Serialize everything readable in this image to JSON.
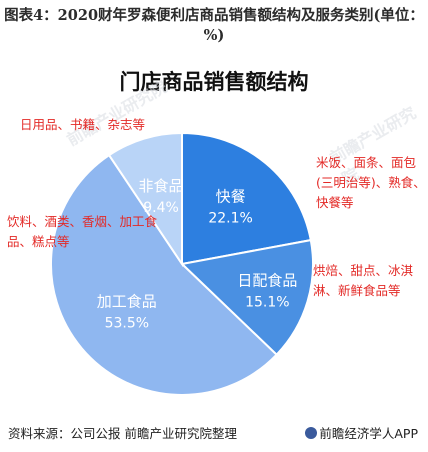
{
  "figure_title": "图表4：2020财年罗森便利店商品销售额结构及服务类别(单位：%)",
  "source": "资料来源：公司公报 前瞻产业研究院整理",
  "logo_text": "前瞻经济学人APP",
  "watermark": "前瞻产业研究院",
  "colors": {
    "slice_dark": "#2d7fe0",
    "slice_mid": "#4a90e2",
    "slice_light": "#8fb7f0",
    "slice_pale": "#b9d4f7",
    "annotation": "#e32a27"
  },
  "chart_data": {
    "type": "pie",
    "title": "门店商品销售额结构",
    "slices": [
      {
        "label": "快餐",
        "value": 22.1,
        "value_label": "22.1%",
        "color": "#2d7fe0"
      },
      {
        "label": "日配食品",
        "value": 15.1,
        "value_label": "15.1%",
        "color": "#4a90e2"
      },
      {
        "label": "加工食品",
        "value": 53.5,
        "value_label": "53.5%",
        "color": "#8fb7f0"
      },
      {
        "label": "非食品",
        "value": 9.4,
        "value_label": "9.4%",
        "color": "#b9d4f7"
      }
    ],
    "annotations": {
      "kuaican": "米饭、面条、面包(三明治等)、熟食、快餐等",
      "ripei": "烘焙、甜点、冰淇淋、新鲜食品等",
      "yinliao": "饮料、酒类、香烟、加工食品、糕点等",
      "riyong": "日用品、书籍、杂志等"
    }
  }
}
